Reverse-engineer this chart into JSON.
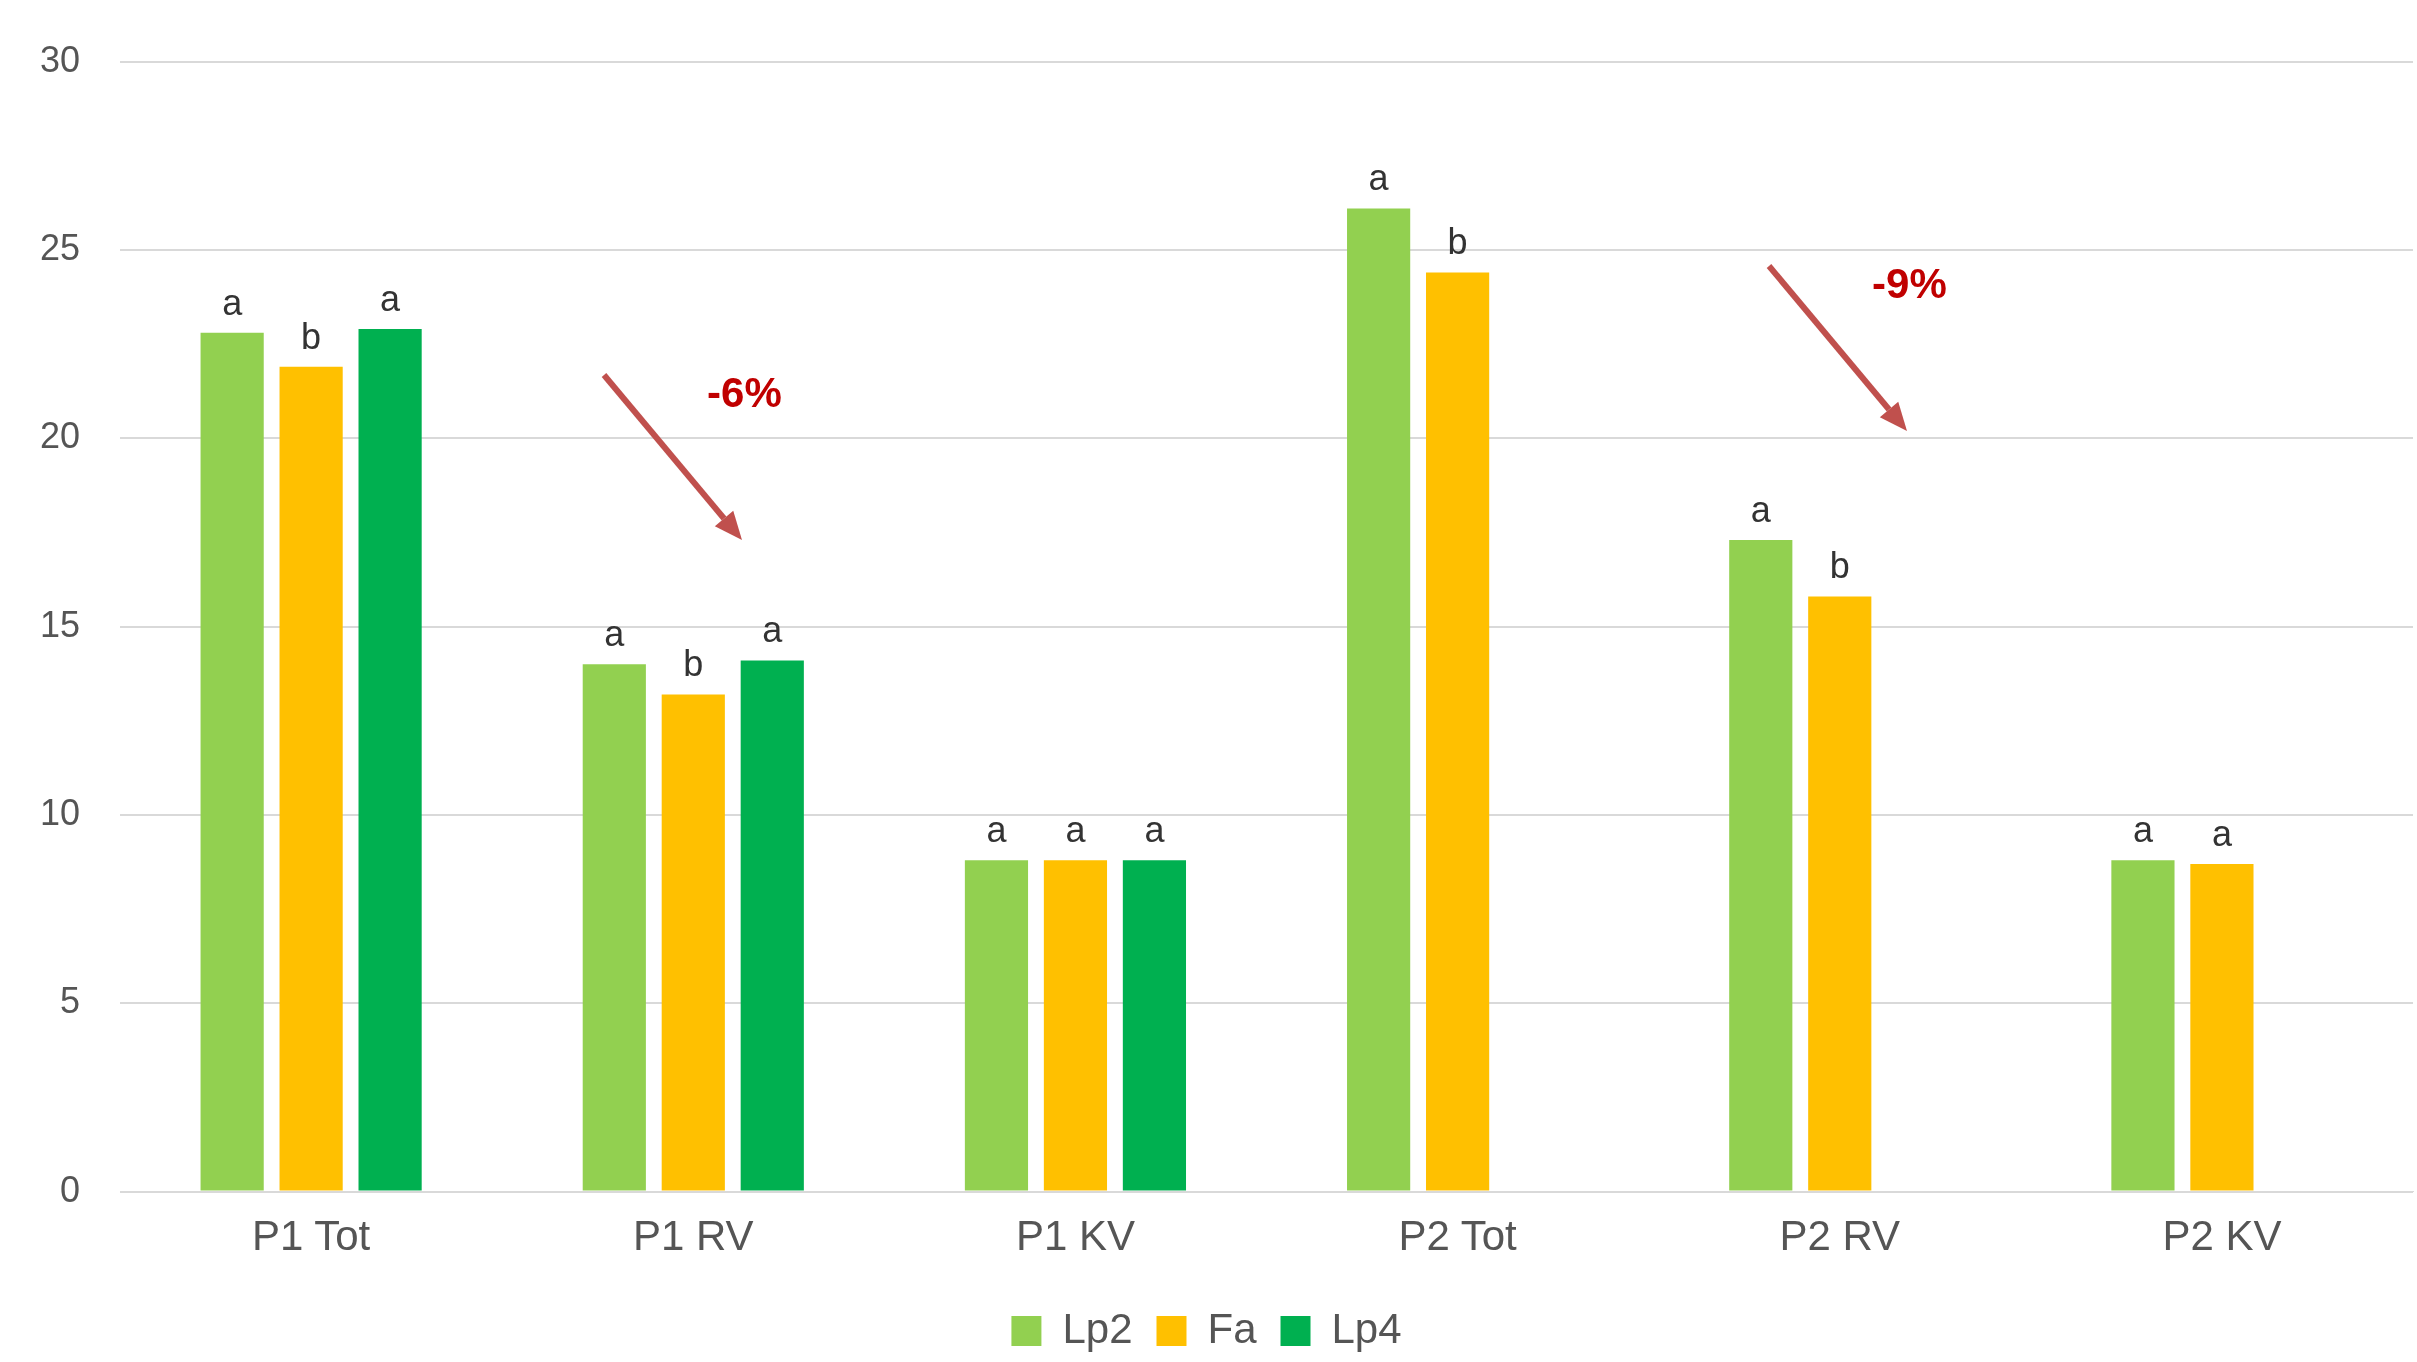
{
  "chart_data": {
    "type": "bar",
    "categories": [
      "P1 Tot",
      "P1 RV",
      "P1 KV",
      "P2 Tot",
      "P2 RV",
      "P2 KV"
    ],
    "series": [
      {
        "name": "Lp2",
        "color": "#92d050",
        "values": [
          22.8,
          14.0,
          8.8,
          26.1,
          17.3,
          8.8
        ],
        "value_labels": [
          "a",
          "a",
          "a",
          "a",
          "a",
          "a"
        ]
      },
      {
        "name": "Fa",
        "color": "#ffc000",
        "values": [
          21.9,
          13.2,
          8.8,
          24.4,
          15.8,
          8.7
        ],
        "value_labels": [
          "b",
          "b",
          "a",
          "b",
          "b",
          "a"
        ]
      },
      {
        "name": "Lp4",
        "color": "#00b050",
        "values": [
          22.9,
          14.1,
          8.8,
          null,
          null,
          null
        ],
        "value_labels": [
          "a",
          "a",
          "a",
          null,
          null,
          null
        ]
      }
    ],
    "ylim": [
      0,
      30
    ],
    "yticks": [
      0,
      5,
      10,
      15,
      20,
      25,
      30
    ],
    "grid": "y",
    "legend": "bottom",
    "annotations": [
      "-6%",
      "-9%"
    ]
  }
}
